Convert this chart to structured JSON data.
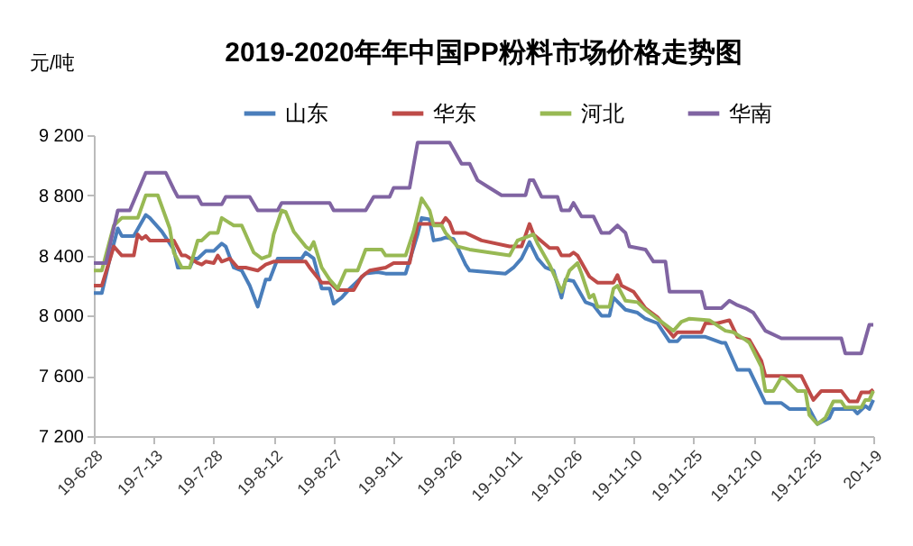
{
  "chart_data": {
    "type": "line",
    "title": "2019-2020年年中国PP粉料市场价格走势图",
    "ylabel": "元/吨",
    "legend": "top",
    "xlim": [
      "2019-06-28",
      "2020-01-09"
    ],
    "xticks": [
      {
        "value": "2019-06-28",
        "label": "19-6-28"
      },
      {
        "value": "2019-07-13",
        "label": "19-7-13"
      },
      {
        "value": "2019-07-28",
        "label": "19-7-28"
      },
      {
        "value": "2019-08-12",
        "label": "19-8-12"
      },
      {
        "value": "2019-08-27",
        "label": "19-8-27"
      },
      {
        "value": "2019-09-11",
        "label": "19-9-11"
      },
      {
        "value": "2019-09-26",
        "label": "19-9-26"
      },
      {
        "value": "2019-10-11",
        "label": "19-10-11"
      },
      {
        "value": "2019-10-26",
        "label": "19-10-26"
      },
      {
        "value": "2019-11-10",
        "label": "19-11-10"
      },
      {
        "value": "2019-11-25",
        "label": "19-11-25"
      },
      {
        "value": "2019-12-10",
        "label": "19-12-10"
      },
      {
        "value": "2019-12-25",
        "label": "19-12-25"
      },
      {
        "value": "2020-01-09",
        "label": "20-1-9"
      }
    ],
    "ylim": [
      7200,
      9200
    ],
    "yticks": [
      {
        "value": 7200,
        "label": "7 200"
      },
      {
        "value": 7600,
        "label": "7 600"
      },
      {
        "value": 8000,
        "label": "8 000"
      },
      {
        "value": 8400,
        "label": "8 400"
      },
      {
        "value": 8800,
        "label": "8 800"
      },
      {
        "value": 9200,
        "label": "9 200"
      }
    ],
    "series": [
      {
        "name": "山东",
        "color": "#4a7ebb",
        "x": [
          "2019-06-28",
          "2019-06-30",
          "2019-07-02",
          "2019-07-04",
          "2019-07-05",
          "2019-07-08",
          "2019-07-11",
          "2019-07-12",
          "2019-07-15",
          "2019-07-18",
          "2019-07-19",
          "2019-07-22",
          "2019-07-23",
          "2019-07-24",
          "2019-07-26",
          "2019-07-28",
          "2019-07-30",
          "2019-07-31",
          "2019-08-02",
          "2019-08-04",
          "2019-08-06",
          "2019-08-08",
          "2019-08-10",
          "2019-08-11",
          "2019-08-13",
          "2019-08-19",
          "2019-08-20",
          "2019-08-22",
          "2019-08-24",
          "2019-08-26",
          "2019-08-27",
          "2019-08-29",
          "2019-08-31",
          "2019-09-04",
          "2019-09-07",
          "2019-09-09",
          "2019-09-14",
          "2019-09-17",
          "2019-09-18",
          "2019-09-20",
          "2019-09-21",
          "2019-09-23",
          "2019-09-24",
          "2019-09-26",
          "2019-09-29",
          "2019-09-30",
          "2019-10-09",
          "2019-10-11",
          "2019-10-13",
          "2019-10-15",
          "2019-10-17",
          "2019-10-19",
          "2019-10-21",
          "2019-10-23",
          "2019-10-24",
          "2019-10-26",
          "2019-10-29",
          "2019-10-31",
          "2019-11-02",
          "2019-11-04",
          "2019-11-05",
          "2019-11-08",
          "2019-11-11",
          "2019-11-13",
          "2019-11-16",
          "2019-11-19",
          "2019-11-21",
          "2019-11-22",
          "2019-11-28",
          "2019-12-02",
          "2019-12-03",
          "2019-12-06",
          "2019-12-09",
          "2019-12-13",
          "2019-12-17",
          "2019-12-19",
          "2019-12-24",
          "2019-12-26",
          "2019-12-29",
          "2019-12-30",
          "2020-01-04",
          "2020-01-05",
          "2020-01-07",
          "2020-01-08",
          "2020-01-09"
        ],
        "values": [
          8150,
          8150,
          8380,
          8580,
          8530,
          8530,
          8670,
          8650,
          8560,
          8440,
          8320,
          8320,
          8380,
          8380,
          8430,
          8430,
          8480,
          8460,
          8320,
          8300,
          8200,
          8060,
          8240,
          8240,
          8380,
          8380,
          8420,
          8380,
          8180,
          8180,
          8080,
          8120,
          8180,
          8280,
          8290,
          8280,
          8280,
          8540,
          8650,
          8640,
          8500,
          8510,
          8520,
          8510,
          8340,
          8300,
          8280,
          8320,
          8380,
          8490,
          8380,
          8320,
          8300,
          8120,
          8240,
          8230,
          8090,
          8070,
          8000,
          8000,
          8120,
          8040,
          8020,
          7980,
          7950,
          7830,
          7830,
          7860,
          7860,
          7820,
          7820,
          7640,
          7640,
          7420,
          7420,
          7380,
          7380,
          7280,
          7320,
          7380,
          7380,
          7350,
          7400,
          7380,
          7440
        ]
      },
      {
        "name": "华东",
        "color": "#be4b48",
        "x": [
          "2019-06-28",
          "2019-06-30",
          "2019-07-03",
          "2019-07-05",
          "2019-07-08",
          "2019-07-09",
          "2019-07-10",
          "2019-07-11",
          "2019-07-12",
          "2019-07-18",
          "2019-07-20",
          "2019-07-21",
          "2019-07-24",
          "2019-07-25",
          "2019-07-26",
          "2019-07-28",
          "2019-07-29",
          "2019-07-30",
          "2019-08-01",
          "2019-08-03",
          "2019-08-05",
          "2019-08-08",
          "2019-08-10",
          "2019-08-12",
          "2019-08-20",
          "2019-08-21",
          "2019-08-24",
          "2019-08-26",
          "2019-08-28",
          "2019-09-01",
          "2019-09-03",
          "2019-09-05",
          "2019-09-09",
          "2019-09-11",
          "2019-09-15",
          "2019-09-17",
          "2019-09-23",
          "2019-09-24",
          "2019-09-25",
          "2019-09-26",
          "2019-09-29",
          "2019-10-03",
          "2019-10-10",
          "2019-10-13",
          "2019-10-15",
          "2019-10-16",
          "2019-10-20",
          "2019-10-22",
          "2019-10-23",
          "2019-10-25",
          "2019-10-26",
          "2019-10-27",
          "2019-10-30",
          "2019-11-01",
          "2019-11-05",
          "2019-11-06",
          "2019-11-07",
          "2019-11-10",
          "2019-11-13",
          "2019-11-16",
          "2019-11-20",
          "2019-11-21",
          "2019-11-27",
          "2019-11-28",
          "2019-12-01",
          "2019-12-04",
          "2019-12-06",
          "2019-12-09",
          "2019-12-12",
          "2019-12-13",
          "2019-12-22",
          "2019-12-25",
          "2019-12-27",
          "2020-01-01",
          "2020-01-03",
          "2020-01-05",
          "2020-01-06",
          "2020-01-08",
          "2020-01-09"
        ],
        "values": [
          8200,
          8200,
          8460,
          8400,
          8400,
          8540,
          8510,
          8530,
          8500,
          8500,
          8400,
          8400,
          8350,
          8340,
          8360,
          8350,
          8400,
          8360,
          8380,
          8320,
          8320,
          8300,
          8340,
          8360,
          8360,
          8320,
          8220,
          8220,
          8170,
          8170,
          8260,
          8300,
          8320,
          8350,
          8350,
          8610,
          8610,
          8650,
          8620,
          8550,
          8550,
          8500,
          8460,
          8460,
          8610,
          8540,
          8450,
          8450,
          8400,
          8400,
          8420,
          8400,
          8260,
          8220,
          8220,
          8270,
          8200,
          8160,
          8050,
          7990,
          7860,
          7890,
          7890,
          7950,
          7950,
          7970,
          7860,
          7840,
          7700,
          7600,
          7600,
          7440,
          7500,
          7500,
          7430,
          7430,
          7490,
          7490,
          7510
        ]
      },
      {
        "name": "河北",
        "color": "#98b954",
        "x": [
          "2019-06-28",
          "2019-06-30",
          "2019-07-03",
          "2019-07-05",
          "2019-07-09",
          "2019-07-11",
          "2019-07-14",
          "2019-07-17",
          "2019-07-18",
          "2019-07-20",
          "2019-07-22",
          "2019-07-24",
          "2019-07-25",
          "2019-07-27",
          "2019-07-29",
          "2019-07-30",
          "2019-08-02",
          "2019-08-04",
          "2019-08-07",
          "2019-08-09",
          "2019-08-11",
          "2019-08-12",
          "2019-08-14",
          "2019-08-15",
          "2019-08-17",
          "2019-08-20",
          "2019-08-21",
          "2019-08-22",
          "2019-08-24",
          "2019-08-26",
          "2019-08-28",
          "2019-08-30",
          "2019-09-02",
          "2019-09-04",
          "2019-09-08",
          "2019-09-09",
          "2019-09-14",
          "2019-09-16",
          "2019-09-18",
          "2019-09-20",
          "2019-09-21",
          "2019-09-23",
          "2019-09-24",
          "2019-09-27",
          "2019-09-30",
          "2019-10-05",
          "2019-10-10",
          "2019-10-12",
          "2019-10-16",
          "2019-10-17",
          "2019-10-20",
          "2019-10-23",
          "2019-10-25",
          "2019-10-27",
          "2019-10-28",
          "2019-10-30",
          "2019-10-31",
          "2019-11-01",
          "2019-11-04",
          "2019-11-05",
          "2019-11-06",
          "2019-11-08",
          "2019-11-11",
          "2019-11-13",
          "2019-11-16",
          "2019-11-20",
          "2019-11-22",
          "2019-11-24",
          "2019-11-29",
          "2019-12-03",
          "2019-12-05",
          "2019-12-08",
          "2019-12-09",
          "2019-12-12",
          "2019-12-13",
          "2019-12-15",
          "2019-12-17",
          "2019-12-18",
          "2019-12-21",
          "2019-12-23",
          "2019-12-24",
          "2019-12-26",
          "2019-12-28",
          "2019-12-30",
          "2020-01-01",
          "2020-01-02",
          "2020-01-06",
          "2020-01-07",
          "2020-01-08",
          "2020-01-09"
        ],
        "values": [
          8300,
          8300,
          8600,
          8650,
          8650,
          8800,
          8800,
          8580,
          8420,
          8320,
          8320,
          8500,
          8500,
          8550,
          8550,
          8650,
          8600,
          8600,
          8420,
          8380,
          8400,
          8540,
          8700,
          8690,
          8560,
          8460,
          8440,
          8490,
          8320,
          8240,
          8180,
          8300,
          8300,
          8440,
          8440,
          8400,
          8400,
          8560,
          8780,
          8700,
          8600,
          8600,
          8550,
          8460,
          8440,
          8420,
          8400,
          8500,
          8540,
          8480,
          8340,
          8160,
          8300,
          8350,
          8280,
          8120,
          8140,
          8060,
          8060,
          8180,
          8200,
          8100,
          8090,
          8040,
          7980,
          7900,
          7960,
          7980,
          7970,
          7900,
          7890,
          7840,
          7820,
          7660,
          7500,
          7500,
          7590,
          7580,
          7500,
          7500,
          7340,
          7280,
          7320,
          7430,
          7430,
          7390,
          7390,
          7440,
          7440,
          7500
        ]
      },
      {
        "name": "华南",
        "color": "#8064a2",
        "x": [
          "2019-06-28",
          "2019-07-01",
          "2019-07-04",
          "2019-07-07",
          "2019-07-11",
          "2019-07-16",
          "2019-07-18",
          "2019-07-19",
          "2019-07-24",
          "2019-07-25",
          "2019-07-30",
          "2019-07-31",
          "2019-08-06",
          "2019-08-08",
          "2019-08-13",
          "2019-08-14",
          "2019-08-26",
          "2019-08-27",
          "2019-09-04",
          "2019-09-06",
          "2019-09-10",
          "2019-09-11",
          "2019-09-15",
          "2019-09-17",
          "2019-09-25",
          "2019-09-28",
          "2019-09-30",
          "2019-10-02",
          "2019-10-05",
          "2019-10-08",
          "2019-10-14",
          "2019-10-15",
          "2019-10-16",
          "2019-10-18",
          "2019-10-22",
          "2019-10-23",
          "2019-10-25",
          "2019-10-26",
          "2019-10-28",
          "2019-10-31",
          "2019-11-02",
          "2019-11-04",
          "2019-11-06",
          "2019-11-08",
          "2019-11-09",
          "2019-11-13",
          "2019-11-15",
          "2019-11-18",
          "2019-11-19",
          "2019-11-27",
          "2019-11-28",
          "2019-12-02",
          "2019-12-04",
          "2019-12-06",
          "2019-12-08",
          "2019-12-10",
          "2019-12-13",
          "2019-12-17",
          "2020-01-01",
          "2020-01-02",
          "2020-01-06",
          "2020-01-08",
          "2020-01-09"
        ],
        "values": [
          8350,
          8350,
          8700,
          8700,
          8950,
          8950,
          8840,
          8790,
          8790,
          8740,
          8740,
          8790,
          8790,
          8700,
          8700,
          8750,
          8750,
          8700,
          8700,
          8790,
          8790,
          8850,
          8850,
          9150,
          9150,
          9010,
          9010,
          8900,
          8850,
          8800,
          8800,
          8900,
          8900,
          8790,
          8790,
          8700,
          8700,
          8750,
          8660,
          8660,
          8550,
          8550,
          8600,
          8550,
          8460,
          8440,
          8360,
          8360,
          8160,
          8160,
          8050,
          8050,
          8100,
          8070,
          8050,
          8020,
          7900,
          7850,
          7850,
          7750,
          7750,
          7940,
          7940
        ]
      }
    ]
  }
}
